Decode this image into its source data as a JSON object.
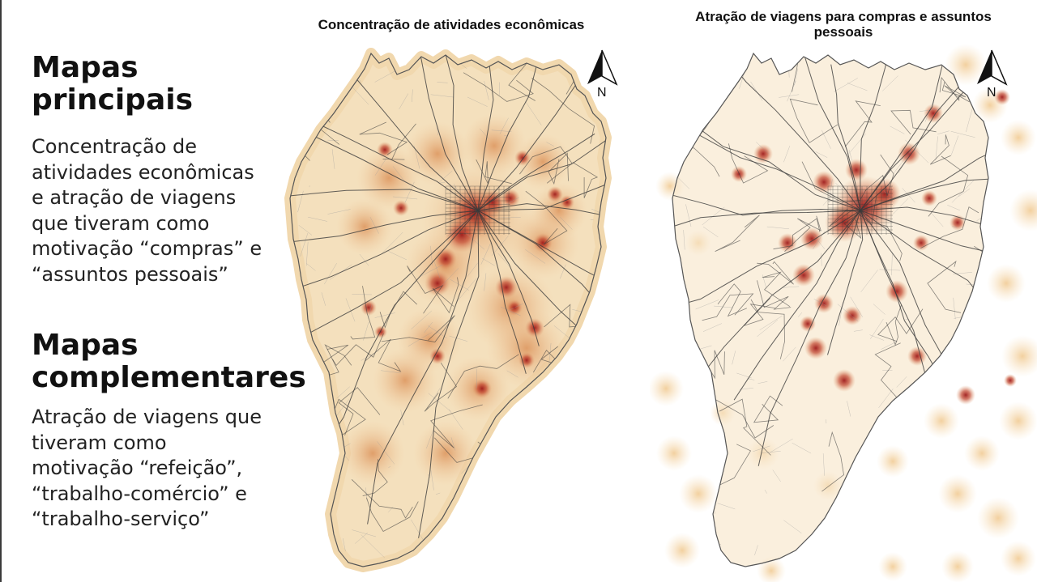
{
  "left": {
    "heading1": [
      "Mapas",
      "principais"
    ],
    "paragraph1": [
      "Concentração de",
      "atividades econômicas",
      "e atração de viagens",
      "que tiveram como",
      "motivação “compras” e",
      "“assuntos pessoais”"
    ],
    "heading2": [
      "Mapas",
      "complementares"
    ],
    "paragraph2": [
      "Atração de viagens que",
      "tiveram como",
      "motivação “refeição”,",
      "“trabalho-comércio” e",
      "“trabalho-serviço”"
    ]
  },
  "maps": [
    {
      "title": "Concentração de atividades econômicas",
      "north_label": "N"
    },
    {
      "title_lines": [
        "Atração de viagens para compras e assuntos",
        "pessoais"
      ],
      "north_label": "N"
    }
  ],
  "colors": {
    "haze": "#f3ddb6",
    "hotspot_mid": "#d9894e",
    "hotspot_high": "#9e1a1a",
    "roads": "#3b3b3b",
    "minor_roads": "#9b9b9b"
  }
}
